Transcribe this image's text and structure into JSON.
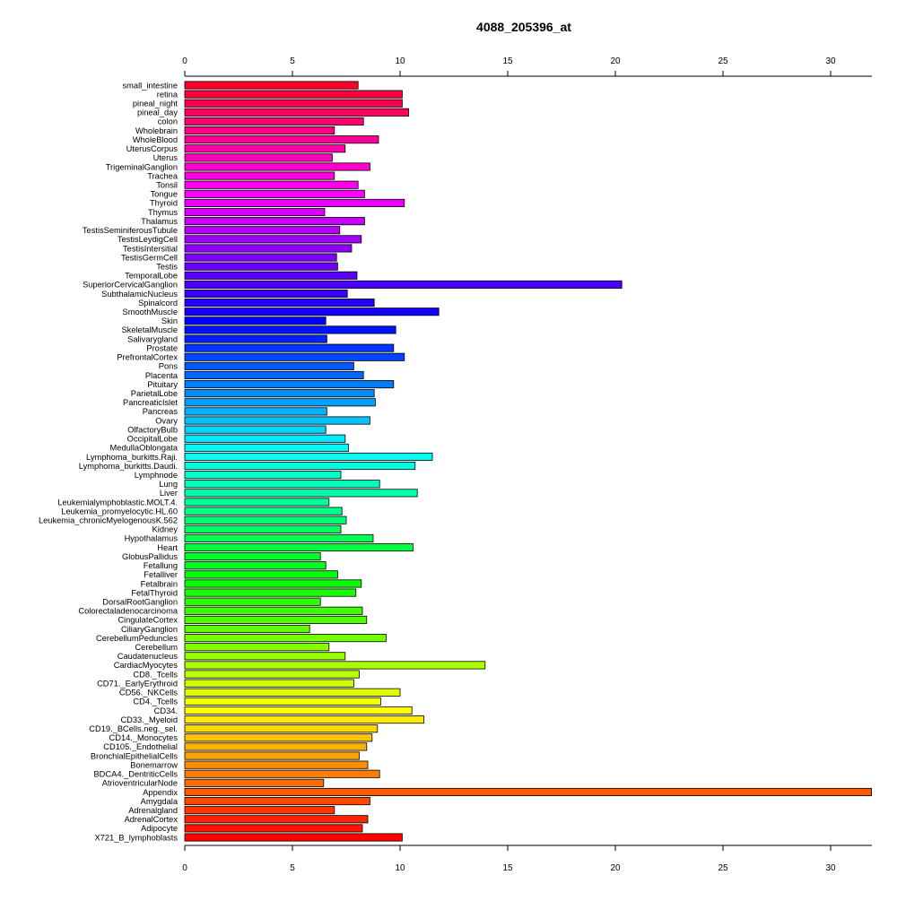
{
  "chart_data": {
    "type": "bar",
    "orientation": "horizontal",
    "title": "4088_205396_at",
    "xlabel": "",
    "ylabel": "",
    "xlim": [
      0,
      30
    ],
    "xticks": [
      0,
      5,
      10,
      15,
      20,
      25,
      30
    ],
    "grid": false,
    "legend": "none",
    "categories": [
      "small_intestine",
      "retina",
      "pineal_night",
      "pineal_day",
      "colon",
      "Wholebrain",
      "WholeBlood",
      "UterusCorpus",
      "Uterus",
      "TrigeminalGanglion",
      "Trachea",
      "Tonsil",
      "Tongue",
      "Thyroid",
      "Thymus",
      "Thalamus",
      "TestisSeminiferousTubule",
      "TestisLeydigCell",
      "TestisIntersitial",
      "TestisGermCell",
      "Testis",
      "TemporalLobe",
      "SuperiorCervicalGanglion",
      "SubthalamicNucleus",
      "Spinalcord",
      "SmoothMuscle",
      "Skin",
      "SkeletalMuscle",
      "Salivarygland",
      "Prostate",
      "PrefrontalCortex",
      "Pons",
      "Placenta",
      "Pituitary",
      "ParietalLobe",
      "PancreaticIslet",
      "Pancreas",
      "Ovary",
      "OlfactoryBulb",
      "OccipitalLobe",
      "MedullaOblongata",
      "Lymphoma_burkitts.Raji.",
      "Lymphoma_burkitts.Daudi.",
      "Lymphnode",
      "Lung",
      "Liver",
      "Leukemialymphoblastic.MOLT.4.",
      "Leukemia_promyelocytic.HL.60",
      "Leukemia_chronicMyelogenousK.562",
      "Kidney",
      "Hypothalamus",
      "Heart",
      "GlobusPallidus",
      "Fetallung",
      "Fetalliver",
      "Fetalbrain",
      "FetalThyroid",
      "DorsalRootGanglion",
      "Colorectaladenocarcinoma",
      "CingulateCortex",
      "CiliaryGanglion",
      "CerebellumPeduncles",
      "Cerebellum",
      "Caudatenucleus",
      "CardiacMyocytes",
      "CD8._Tcells",
      "CD71._EarlyErythroid",
      "CD56._NKCells",
      "CD4._Tcells",
      "CD34.",
      "CD33._Myeloid",
      "CD19._BCells.neg._sel.",
      "CD14._Monocytes",
      "CD105._Endothelial",
      "BronchialEpithelialCells",
      "Bonemarrow",
      "BDCA4._DentriticCells",
      "AtrioventricularNode",
      "Appendix",
      "Amygdala",
      "Adrenalgland",
      "AdrenalCortex",
      "Adipocyte",
      "X721_B_lymphoblasts"
    ],
    "values": [
      8.05,
      10.1,
      10.1,
      10.4,
      8.3,
      6.95,
      9.0,
      7.45,
      6.85,
      8.6,
      6.95,
      8.05,
      8.35,
      10.2,
      6.5,
      8.35,
      7.2,
      8.2,
      7.75,
      7.05,
      7.1,
      8.0,
      20.3,
      7.55,
      8.8,
      11.8,
      6.55,
      9.8,
      6.6,
      9.7,
      10.2,
      7.85,
      8.3,
      9.7,
      8.8,
      8.85,
      6.6,
      8.6,
      6.55,
      7.45,
      7.6,
      11.5,
      10.7,
      7.25,
      9.05,
      10.8,
      6.7,
      7.3,
      7.5,
      7.25,
      8.75,
      10.6,
      6.3,
      6.55,
      7.1,
      8.2,
      7.95,
      6.3,
      8.25,
      8.45,
      5.8,
      9.35,
      6.7,
      7.45,
      13.95,
      8.1,
      7.85,
      10.0,
      9.1,
      10.55,
      11.1,
      8.95,
      8.7,
      8.45,
      8.1,
      8.5,
      9.05,
      6.45,
      31.9,
      8.6,
      6.95,
      8.5,
      8.25,
      10.1
    ]
  }
}
